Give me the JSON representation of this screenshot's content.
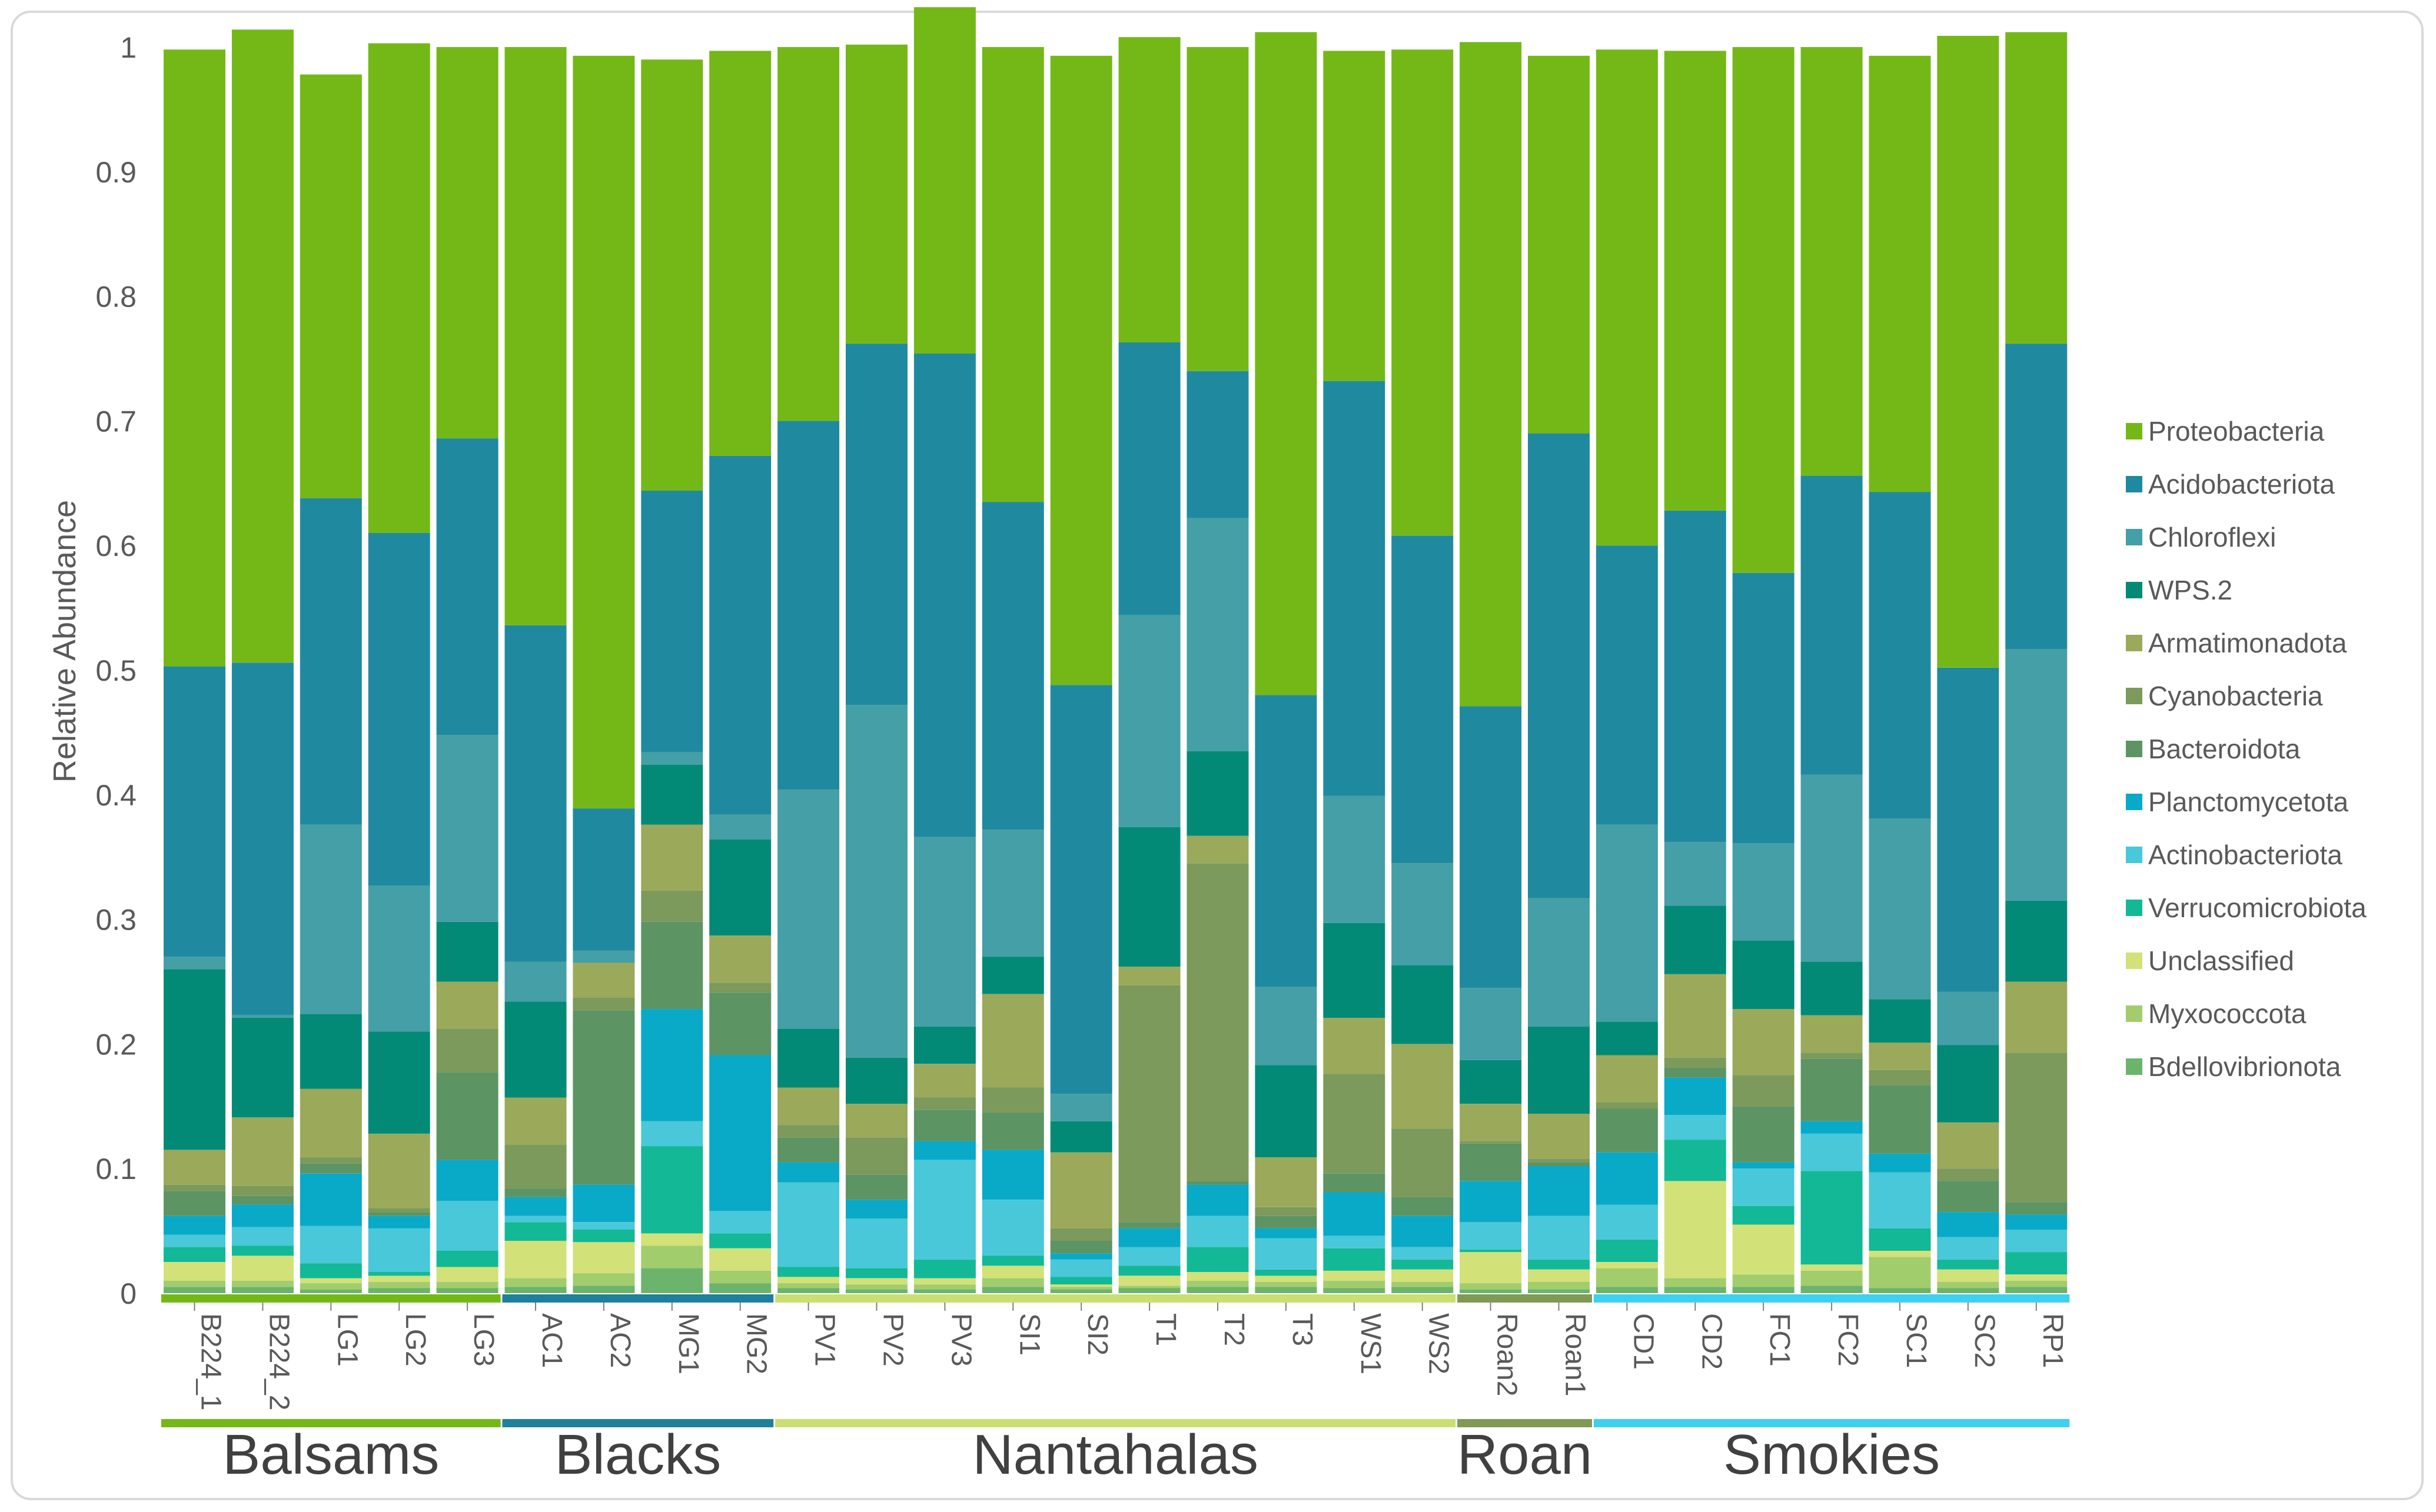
{
  "chart_data": {
    "type": "bar",
    "stacked": true,
    "ylabel": "Relative Abundance",
    "ylim": [
      0,
      1
    ],
    "yticks": [
      "0",
      "0.1",
      "0.2",
      "0.3",
      "0.4",
      "0.5",
      "0.6",
      "0.7",
      "0.8",
      "0.9",
      "1"
    ],
    "categories": [
      "B224_1",
      "B224_2",
      "LG1",
      "LG2",
      "LG3",
      "AC1",
      "AC2",
      "MG1",
      "MG2",
      "PV1",
      "PV2",
      "PV3",
      "SI1",
      "SI2",
      "T1",
      "T2",
      "T3",
      "WS1",
      "WS2",
      "Roan2",
      "Roan1",
      "CD1",
      "CD2",
      "FC1",
      "FC2",
      "SC1",
      "SC2",
      "RP1"
    ],
    "groups": [
      {
        "name": "Balsams",
        "count": 5,
        "color": "#74b817"
      },
      {
        "name": "Blacks",
        "count": 4,
        "color": "#1f8099"
      },
      {
        "name": "Nantahalas",
        "count": 10,
        "color": "#c9df72"
      },
      {
        "name": "Roan",
        "count": 2,
        "color": "#7f9a55"
      },
      {
        "name": "Smokies",
        "count": 7,
        "color": "#3fd0ef"
      }
    ],
    "legend_position": "right",
    "series": [
      {
        "name": "Bdellovibrionota",
        "color": "#6cb46c",
        "values": [
          0.005,
          0.005,
          0.003,
          0.004,
          0.004,
          0.005,
          0.006,
          0.02,
          0.008,
          0.004,
          0.003,
          0.003,
          0.005,
          0.003,
          0.004,
          0.005,
          0.005,
          0.004,
          0.005,
          0.003,
          0.003,
          0.005,
          0.005,
          0.005,
          0.006,
          0.004,
          0.004,
          0.005
        ]
      },
      {
        "name": "Myxococcota",
        "color": "#a2cd6c",
        "values": [
          0.005,
          0.005,
          0.005,
          0.005,
          0.005,
          0.007,
          0.01,
          0.018,
          0.01,
          0.004,
          0.004,
          0.004,
          0.007,
          0.002,
          0.002,
          0.005,
          0.004,
          0.006,
          0.004,
          0.005,
          0.006,
          0.015,
          0.007,
          0.01,
          0.012,
          0.025,
          0.005,
          0.005
        ]
      },
      {
        "name": "Unclassified",
        "color": "#d2e178",
        "values": [
          0.015,
          0.02,
          0.004,
          0.005,
          0.012,
          0.03,
          0.025,
          0.01,
          0.018,
          0.005,
          0.005,
          0.005,
          0.01,
          0.002,
          0.008,
          0.007,
          0.005,
          0.008,
          0.01,
          0.025,
          0.01,
          0.005,
          0.078,
          0.04,
          0.005,
          0.005,
          0.01,
          0.005
        ]
      },
      {
        "name": "Verrucomicrobiota",
        "color": "#13b897",
        "values": [
          0.012,
          0.008,
          0.012,
          0.003,
          0.013,
          0.015,
          0.01,
          0.07,
          0.012,
          0.008,
          0.008,
          0.015,
          0.008,
          0.006,
          0.008,
          0.02,
          0.005,
          0.018,
          0.008,
          0.002,
          0.008,
          0.018,
          0.033,
          0.015,
          0.075,
          0.018,
          0.008,
          0.018
        ]
      },
      {
        "name": "Actinobacteriota",
        "color": "#48c8d8",
        "values": [
          0.01,
          0.015,
          0.03,
          0.035,
          0.04,
          0.005,
          0.006,
          0.02,
          0.018,
          0.068,
          0.04,
          0.08,
          0.045,
          0.014,
          0.015,
          0.025,
          0.025,
          0.01,
          0.01,
          0.022,
          0.035,
          0.028,
          0.02,
          0.03,
          0.03,
          0.045,
          0.018,
          0.018
        ]
      },
      {
        "name": "Planctomycetota",
        "color": "#09a9c8",
        "values": [
          0.015,
          0.018,
          0.042,
          0.01,
          0.033,
          0.015,
          0.03,
          0.09,
          0.125,
          0.016,
          0.015,
          0.015,
          0.04,
          0.005,
          0.015,
          0.025,
          0.008,
          0.035,
          0.025,
          0.033,
          0.04,
          0.042,
          0.03,
          0.005,
          0.01,
          0.015,
          0.02,
          0.012
        ]
      },
      {
        "name": "Bacteroidota",
        "color": "#5c9463",
        "values": [
          0.02,
          0.007,
          0.008,
          0.003,
          0.07,
          0.007,
          0.14,
          0.07,
          0.05,
          0.02,
          0.02,
          0.025,
          0.03,
          0.01,
          0.005,
          0.003,
          0.01,
          0.015,
          0.015,
          0.03,
          0.003,
          0.035,
          0.008,
          0.045,
          0.05,
          0.055,
          0.025,
          0.01
        ]
      },
      {
        "name": "Cyanobacteria",
        "color": "#7b9a5b",
        "values": [
          0.005,
          0.008,
          0.005,
          0.003,
          0.035,
          0.035,
          0.01,
          0.025,
          0.008,
          0.01,
          0.03,
          0.01,
          0.02,
          0.01,
          0.19,
          0.255,
          0.007,
          0.08,
          0.055,
          0.002,
          0.003,
          0.005,
          0.008,
          0.025,
          0.005,
          0.012,
          0.01,
          0.12
        ]
      },
      {
        "name": "Armatimonadota",
        "color": "#9ba95b",
        "values": [
          0.028,
          0.055,
          0.055,
          0.06,
          0.038,
          0.038,
          0.028,
          0.053,
          0.038,
          0.03,
          0.027,
          0.027,
          0.075,
          0.061,
          0.015,
          0.022,
          0.04,
          0.045,
          0.068,
          0.03,
          0.036,
          0.038,
          0.067,
          0.053,
          0.03,
          0.022,
          0.037,
          0.057
        ]
      },
      {
        "name": "WPS.2",
        "color": "#028a76",
        "values": [
          0.145,
          0.08,
          0.06,
          0.082,
          0.048,
          0.077,
          0.0,
          0.048,
          0.077,
          0.047,
          0.037,
          0.03,
          0.03,
          0.025,
          0.112,
          0.068,
          0.074,
          0.076,
          0.063,
          0.035,
          0.07,
          0.027,
          0.055,
          0.055,
          0.043,
          0.035,
          0.062,
          0.065
        ]
      },
      {
        "name": "Chloroflexi",
        "color": "#449fa7",
        "values": [
          0.01,
          0.002,
          0.152,
          0.117,
          0.15,
          0.032,
          0.01,
          0.01,
          0.02,
          0.192,
          0.283,
          0.152,
          0.102,
          0.022,
          0.17,
          0.187,
          0.063,
          0.102,
          0.082,
          0.058,
          0.103,
          0.158,
          0.051,
          0.078,
          0.15,
          0.145,
          0.043,
          0.202
        ]
      },
      {
        "name": "Acidobacteriota",
        "color": "#1f8a9f",
        "values": [
          0.233,
          0.283,
          0.262,
          0.283,
          0.238,
          0.27,
          0.114,
          0.21,
          0.288,
          0.296,
          0.29,
          0.388,
          0.263,
          0.328,
          0.219,
          0.118,
          0.234,
          0.333,
          0.263,
          0.226,
          0.373,
          0.224,
          0.266,
          0.217,
          0.24,
          0.262,
          0.26,
          0.245
        ]
      },
      {
        "name": "Proteobacteria",
        "color": "#74b817",
        "values": [
          0.495,
          0.508,
          0.34,
          0.393,
          0.314,
          0.464,
          0.604,
          0.346,
          0.325,
          0.3,
          0.24,
          0.278,
          0.365,
          0.505,
          0.245,
          0.26,
          0.532,
          0.265,
          0.39,
          0.533,
          0.303,
          0.398,
          0.369,
          0.422,
          0.344,
          0.35,
          0.507,
          0.25
        ]
      }
    ]
  }
}
